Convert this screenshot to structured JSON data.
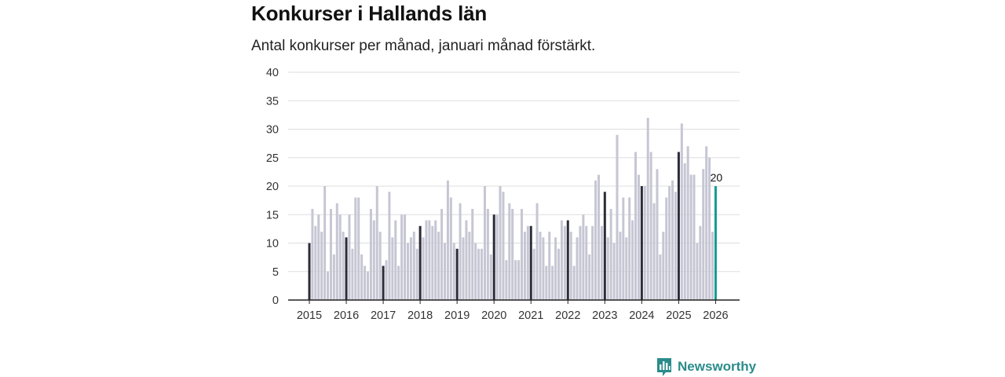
{
  "title": "Konkurser i Hallands län",
  "subtitle": "Antal konkurser per månad, januari månad förstärkt.",
  "brand": "Newsworthy",
  "colors": {
    "muted": "#c6c6d4",
    "january": "#2c2c3a",
    "latest": "#139c93",
    "grid": "#dedede",
    "axis": "#222222"
  },
  "chart_data": {
    "type": "bar",
    "title": "Konkurser i Hallands län",
    "subtitle": "Antal konkurser per månad, januari månad förstärkt.",
    "xlabel": "",
    "ylabel": "",
    "ylim": [
      0,
      40
    ],
    "yticks": [
      0,
      5,
      10,
      15,
      20,
      25,
      30,
      35,
      40
    ],
    "xticks": [
      "2015",
      "2016",
      "2017",
      "2018",
      "2019",
      "2020",
      "2021",
      "2022",
      "2023",
      "2024",
      "2025",
      "2026"
    ],
    "start": "2015-01",
    "values": [
      10,
      16,
      13,
      15,
      12,
      20,
      5,
      16,
      8,
      17,
      15,
      12,
      11,
      15,
      9,
      18,
      18,
      8,
      6,
      5,
      16,
      14,
      20,
      12,
      6,
      7,
      19,
      11,
      14,
      6,
      15,
      15,
      10,
      11,
      12,
      9,
      13,
      11,
      14,
      14,
      13,
      14,
      12,
      16,
      10,
      21,
      18,
      10,
      9,
      17,
      11,
      14,
      12,
      16,
      10,
      9,
      9,
      20,
      16,
      8,
      15,
      15,
      20,
      19,
      7,
      17,
      16,
      7,
      7,
      16,
      12,
      13,
      13,
      9,
      17,
      12,
      11,
      6,
      12,
      6,
      11,
      9,
      14,
      13,
      14,
      12,
      6,
      11,
      13,
      15,
      13,
      8,
      13,
      21,
      22,
      13,
      19,
      11,
      16,
      10,
      29,
      12,
      18,
      11,
      18,
      14,
      26,
      22,
      20,
      20,
      32,
      26,
      17,
      23,
      8,
      12,
      18,
      20,
      21,
      19,
      26,
      31,
      24,
      27,
      22,
      22,
      10,
      13,
      23,
      27,
      25,
      12,
      20
    ],
    "highlight": "january",
    "annotation": {
      "label": "20",
      "index": 132
    }
  }
}
